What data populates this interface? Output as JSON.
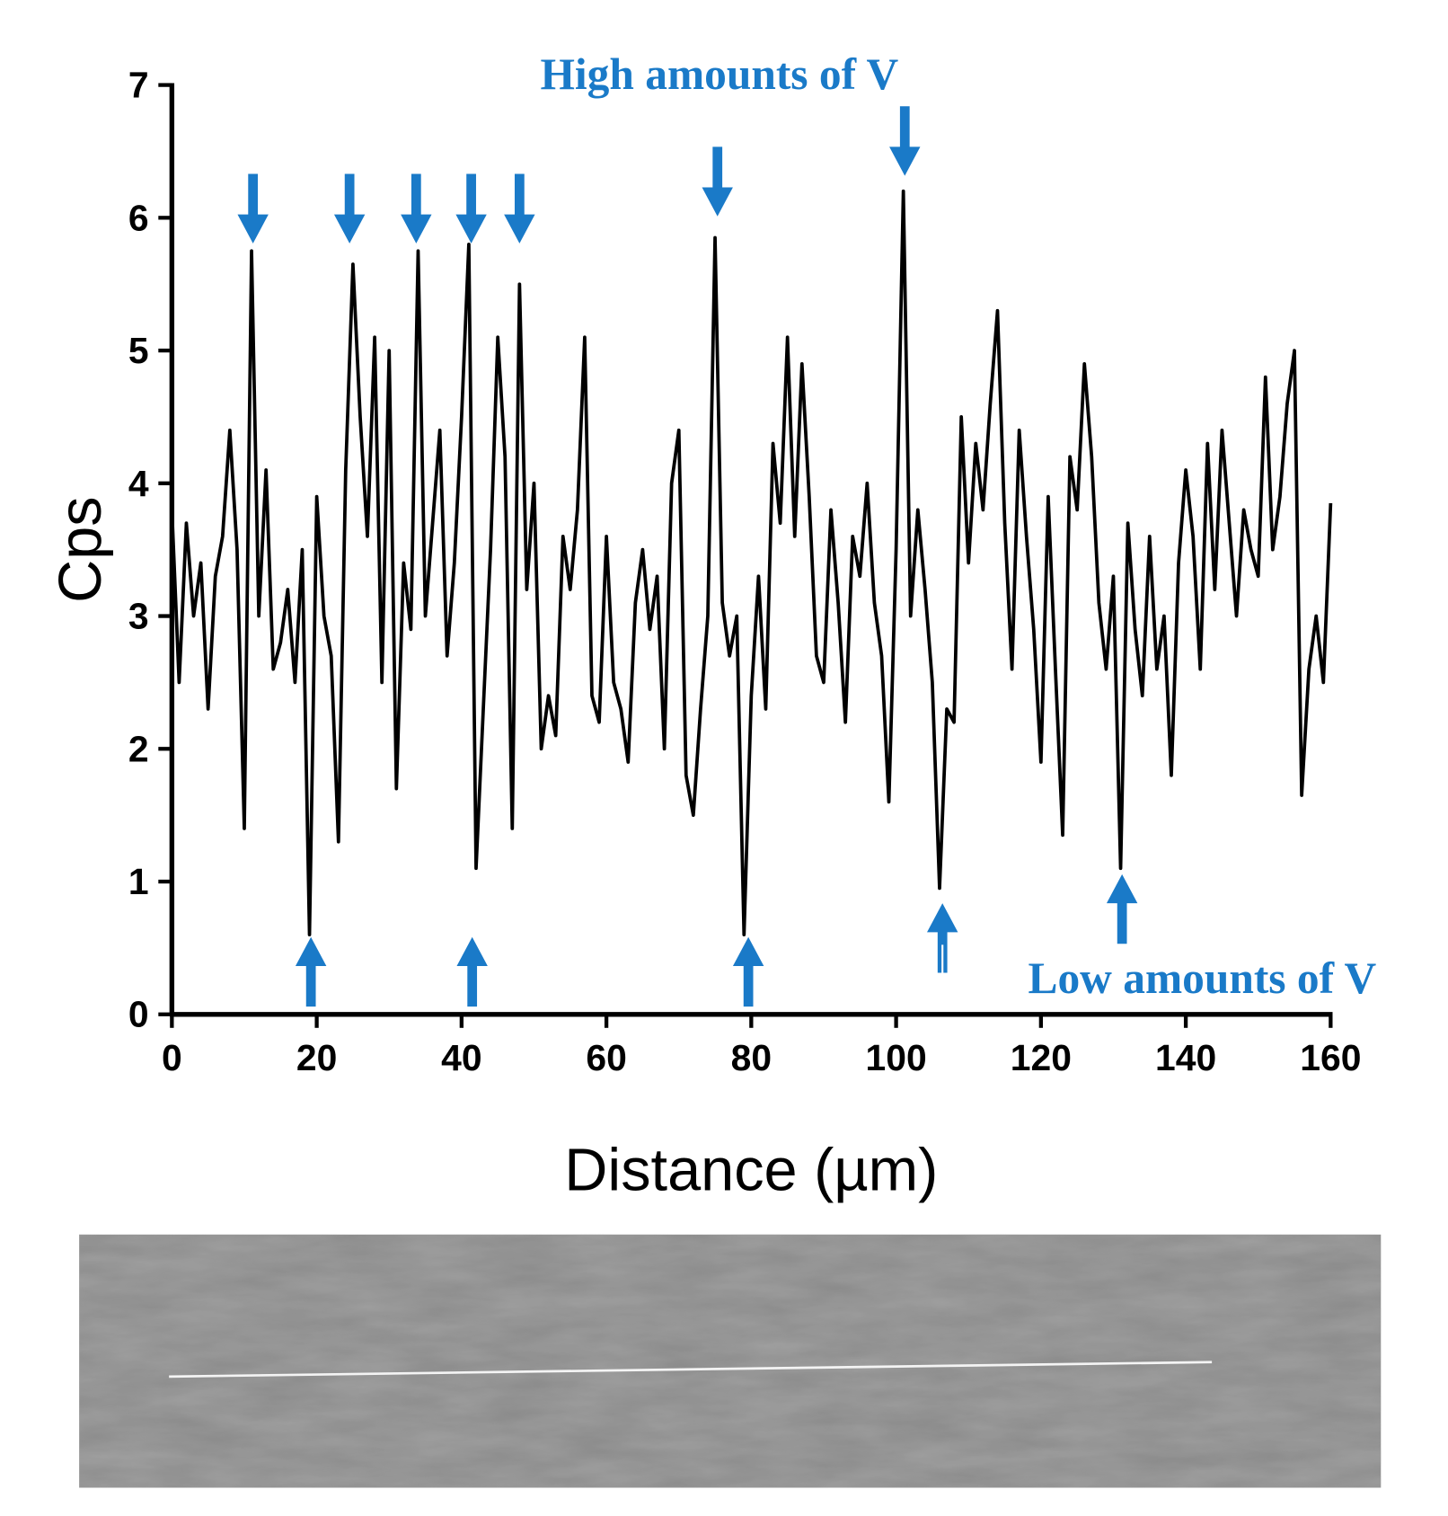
{
  "chart_data": {
    "type": "line",
    "xlabel": "Distance (µm)",
    "ylabel": "Cps",
    "annotations": [
      "High amounts of V",
      "Low amounts of V"
    ],
    "color": "#000000",
    "xlim": [
      0,
      160
    ],
    "xticks": [
      0,
      20,
      40,
      60,
      80,
      100,
      120,
      140,
      160
    ],
    "ylim": [
      0,
      7
    ],
    "yticks": [
      0,
      1,
      2,
      3,
      4,
      5,
      6,
      7
    ],
    "x": [
      0,
      1,
      2,
      3,
      4,
      5,
      6,
      7,
      8,
      9,
      10,
      11,
      12,
      13,
      14,
      15,
      16,
      17,
      18,
      19,
      20,
      21,
      22,
      23,
      24,
      25,
      26,
      27,
      28,
      29,
      30,
      31,
      32,
      33,
      34,
      35,
      36,
      37,
      38,
      39,
      40,
      41,
      42,
      43,
      44,
      45,
      46,
      47,
      48,
      49,
      50,
      51,
      52,
      53,
      54,
      55,
      56,
      57,
      58,
      59,
      60,
      61,
      62,
      63,
      64,
      65,
      66,
      67,
      68,
      69,
      70,
      71,
      72,
      73,
      74,
      75,
      76,
      77,
      78,
      79,
      80,
      81,
      82,
      83,
      84,
      85,
      86,
      87,
      88,
      89,
      90,
      91,
      92,
      93,
      94,
      95,
      96,
      97,
      98,
      99,
      100,
      101,
      102,
      103,
      104,
      105,
      106,
      107,
      108,
      109,
      110,
      111,
      112,
      113,
      114,
      115,
      116,
      117,
      118,
      119,
      120,
      121,
      122,
      123,
      124,
      125,
      126,
      127,
      128,
      129,
      130,
      131,
      132,
      133,
      134,
      135,
      136,
      137,
      138,
      139,
      140,
      141,
      142,
      143,
      144,
      145,
      146,
      147,
      148,
      149,
      150,
      151,
      152,
      153,
      154,
      155,
      156,
      157,
      158,
      159,
      160
    ],
    "values": [
      3.8,
      2.5,
      3.7,
      3.0,
      3.4,
      2.3,
      3.3,
      3.6,
      4.4,
      3.5,
      1.4,
      5.75,
      3.0,
      4.1,
      2.6,
      2.8,
      3.2,
      2.5,
      3.5,
      0.6,
      3.9,
      3.0,
      2.7,
      1.3,
      4.1,
      5.65,
      4.5,
      3.6,
      5.1,
      2.5,
      5.0,
      1.7,
      3.4,
      2.9,
      5.75,
      3.0,
      3.7,
      4.4,
      2.7,
      3.4,
      4.5,
      5.8,
      1.1,
      2.3,
      3.5,
      5.1,
      4.2,
      1.4,
      5.5,
      3.2,
      4.0,
      2.0,
      2.4,
      2.1,
      3.6,
      3.2,
      3.8,
      5.1,
      2.4,
      2.2,
      3.6,
      2.5,
      2.3,
      1.9,
      3.1,
      3.5,
      2.9,
      3.3,
      2.0,
      4.0,
      4.4,
      1.8,
      1.5,
      2.3,
      3.0,
      5.85,
      3.1,
      2.7,
      3.0,
      0.6,
      2.4,
      3.3,
      2.3,
      4.3,
      3.7,
      5.1,
      3.6,
      4.9,
      3.9,
      2.7,
      2.5,
      3.8,
      3.1,
      2.2,
      3.6,
      3.3,
      4.0,
      3.1,
      2.7,
      1.6,
      3.5,
      6.2,
      3.0,
      3.8,
      3.2,
      2.5,
      0.95,
      2.3,
      2.2,
      4.5,
      3.4,
      4.3,
      3.8,
      4.6,
      5.3,
      3.7,
      2.6,
      4.4,
      3.6,
      2.9,
      1.9,
      3.9,
      2.6,
      1.35,
      4.2,
      3.8,
      4.9,
      4.2,
      3.1,
      2.6,
      3.3,
      1.1,
      3.7,
      2.9,
      2.4,
      3.6,
      2.6,
      3.0,
      1.8,
      3.4,
      4.1,
      3.6,
      2.6,
      4.3,
      3.2,
      4.4,
      3.7,
      3.0,
      3.8,
      3.5,
      3.3,
      4.8,
      3.5,
      3.9,
      4.6,
      5.0,
      1.65,
      2.6,
      3.0,
      2.5,
      3.85
    ]
  }
}
